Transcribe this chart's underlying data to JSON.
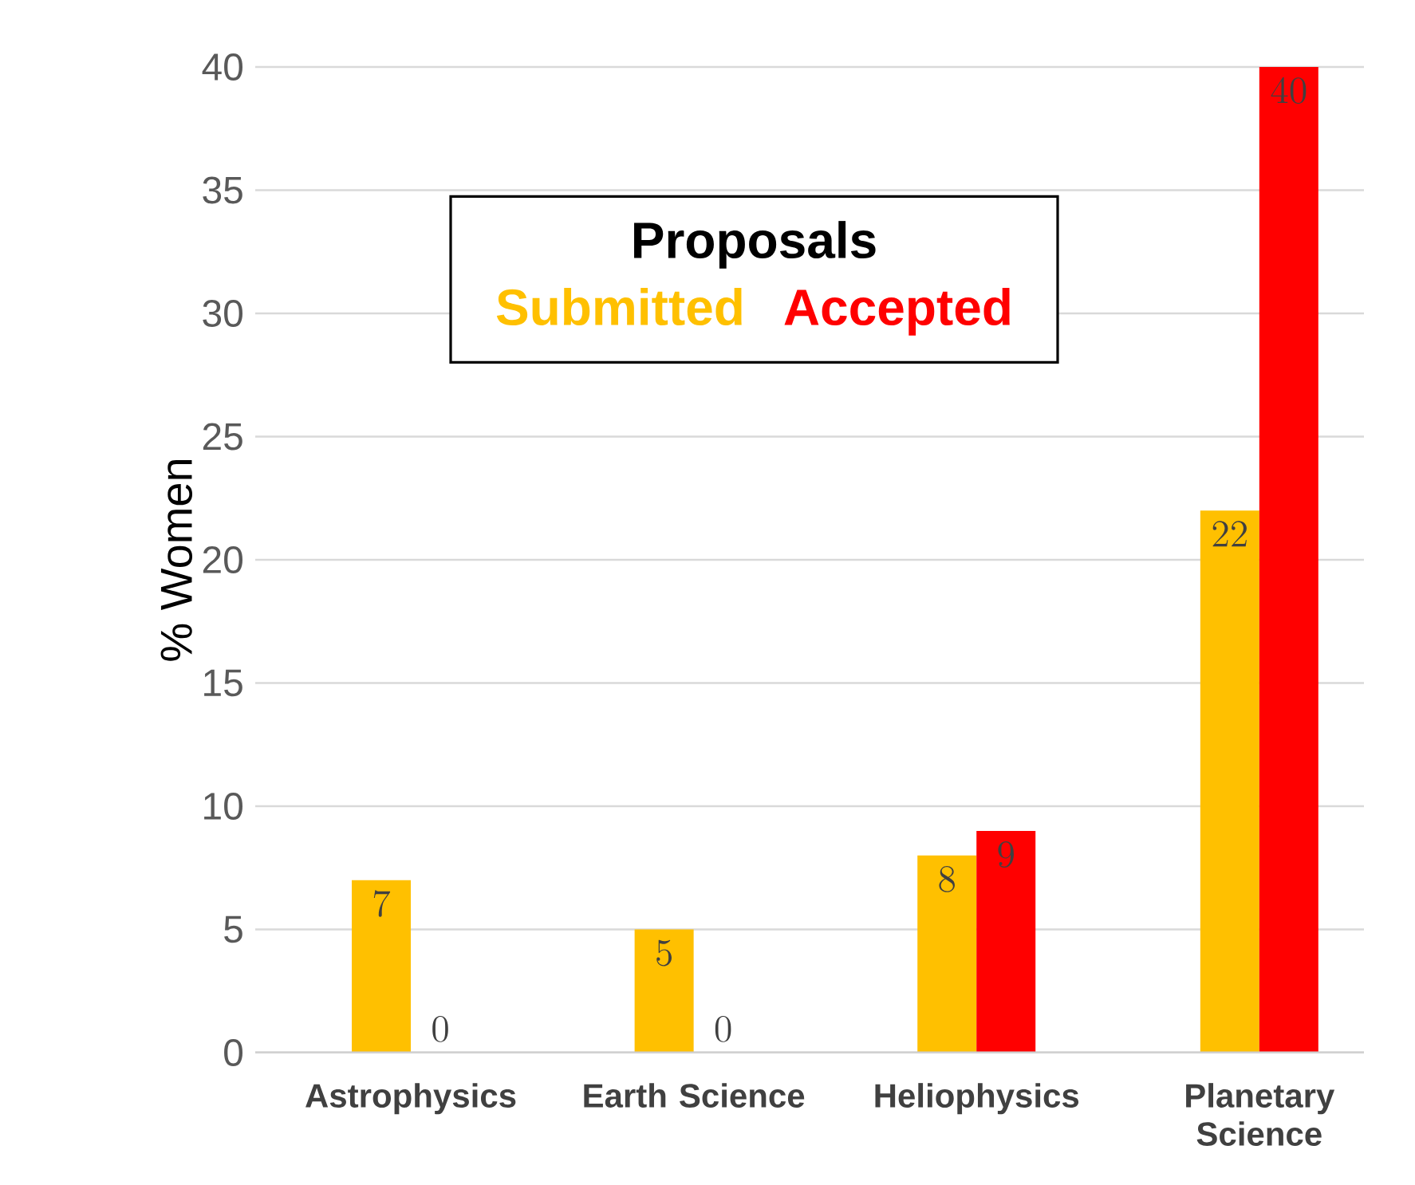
{
  "chart_data": {
    "type": "bar",
    "ylabel": "% Women",
    "legend_title": "Proposals",
    "categories": [
      "Astrophysics",
      "Earth Science",
      "Heliophysics",
      "Planetary Science"
    ],
    "series": [
      {
        "name": "Submitted",
        "color": "#ffc000",
        "values": [
          7,
          5,
          8,
          22
        ]
      },
      {
        "name": "Accepted",
        "color": "#ff0000",
        "values": [
          0,
          0,
          9,
          40
        ]
      }
    ],
    "ylim": [
      0,
      40
    ],
    "yticks": [
      0,
      5,
      10,
      15,
      20,
      25,
      30,
      35,
      40
    ],
    "grid": "y",
    "legend": "top",
    "data_labels": true
  }
}
